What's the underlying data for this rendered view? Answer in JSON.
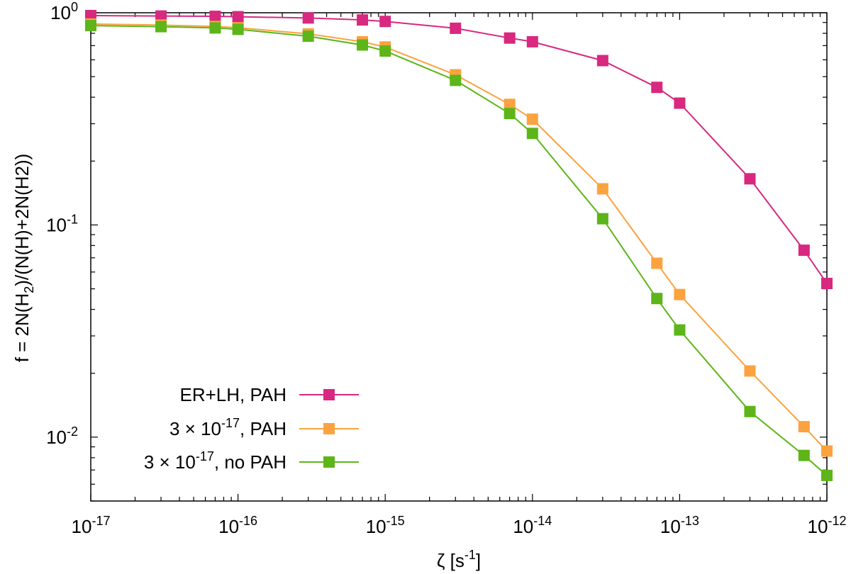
{
  "chart_data": {
    "type": "line",
    "title": "",
    "x_scale": "log",
    "y_scale": "log",
    "xlim": [
      1e-17,
      1e-12
    ],
    "ylim": [
      0.005,
      1.0
    ],
    "xlabel": {
      "main": "ζ",
      "unit_prefix": "[s",
      "unit_exp": "-1",
      "unit_suffix": "]"
    },
    "ylabel": {
      "prefix": "f = 2N(H",
      "sub": "2",
      "suffix": ")/(N(H)+2N(H2))"
    },
    "x_ticks": [
      {
        "value": 1e-17,
        "base": "10",
        "exp": "-17"
      },
      {
        "value": 1e-16,
        "base": "10",
        "exp": "-16"
      },
      {
        "value": 1e-15,
        "base": "10",
        "exp": "-15"
      },
      {
        "value": 1e-14,
        "base": "10",
        "exp": "-14"
      },
      {
        "value": 1e-13,
        "base": "10",
        "exp": "-13"
      },
      {
        "value": 1e-12,
        "base": "10",
        "exp": "-12"
      }
    ],
    "y_ticks": [
      {
        "value": 1.0,
        "base": "10",
        "exp": "0"
      },
      {
        "value": 0.1,
        "base": "10",
        "exp": "-1"
      },
      {
        "value": 0.01,
        "base": "10",
        "exp": "-2"
      }
    ],
    "x": [
      1e-17,
      3e-17,
      7e-17,
      1e-16,
      3e-16,
      7e-16,
      1e-15,
      3e-15,
      7e-15,
      1e-14,
      3e-14,
      7e-14,
      1e-13,
      3e-13,
      7e-13,
      1e-12
    ],
    "series": [
      {
        "name": "ER+LH, PAH",
        "legend_parts": {
          "prefix": "ER+LH, PAH",
          "exp": "",
          "suffix": ""
        },
        "color": "#d8287f",
        "values": [
          0.97,
          0.965,
          0.962,
          0.958,
          0.945,
          0.925,
          0.91,
          0.845,
          0.76,
          0.73,
          0.595,
          0.445,
          0.375,
          0.165,
          0.076,
          0.053
        ]
      },
      {
        "name": "3×10^-17, PAH",
        "legend_parts": {
          "prefix": "3 × 10",
          "exp": "-17",
          "suffix": ", PAH"
        },
        "color": "#fca23f",
        "values": [
          0.885,
          0.875,
          0.862,
          0.85,
          0.795,
          0.73,
          0.69,
          0.51,
          0.37,
          0.315,
          0.148,
          0.066,
          0.047,
          0.0205,
          0.0112,
          0.0086
        ]
      },
      {
        "name": "3×10^-17, no PAH",
        "legend_parts": {
          "prefix": "3 × 10",
          "exp": "-17",
          "suffix": ", no PAH"
        },
        "color": "#5db519",
        "values": [
          0.87,
          0.86,
          0.848,
          0.835,
          0.775,
          0.705,
          0.66,
          0.48,
          0.335,
          0.27,
          0.107,
          0.045,
          0.032,
          0.0132,
          0.0082,
          0.0066
        ]
      }
    ],
    "legend_position": "bottom-left",
    "grid": false
  }
}
